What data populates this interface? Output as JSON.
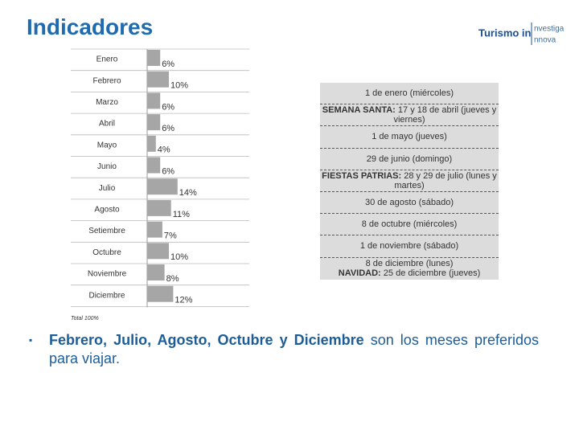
{
  "header": {
    "title": "Indicadores",
    "logo": {
      "brand": "Turismo in",
      "line1": "nvestiga",
      "line2": "nnova"
    }
  },
  "chart_data": {
    "type": "bar",
    "orientation": "horizontal",
    "categories": [
      "Enero",
      "Febrero",
      "Marzo",
      "Abril",
      "Mayo",
      "Junio",
      "Julio",
      "Agosto",
      "Setiembre",
      "Octubre",
      "Noviembre",
      "Diciembre"
    ],
    "values": [
      6,
      10,
      6,
      6,
      4,
      6,
      14,
      11,
      7,
      10,
      8,
      12
    ],
    "value_labels": [
      "6%",
      "10%",
      "6%",
      "6%",
      "4%",
      "6%",
      "14%",
      "11%",
      "7%",
      "10%",
      "8%",
      "12%"
    ],
    "color": "#a6a6a6",
    "annotation": "Total 100%"
  },
  "holidays": [
    [
      {
        "text": "1 de enero (miércoles)"
      }
    ],
    [
      {
        "lead": "SEMANA SANTA:",
        "text": "17 y 18 de abril (jueves y viernes)"
      }
    ],
    [
      {
        "text": "1 de mayo (jueves)"
      }
    ],
    [
      {
        "text": "29 de junio (domingo)"
      }
    ],
    [
      {
        "lead": "FIESTAS PATRIAS:",
        "text": "28 y 29 de julio (lunes y martes)"
      }
    ],
    [
      {
        "text": "30 de agosto (sábado)"
      }
    ],
    [
      {
        "text": "8 de octubre (miércoles)"
      }
    ],
    [
      {
        "text": "1 de noviembre (sábado)"
      }
    ],
    [
      {
        "text": "8 de diciembre (lunes)"
      },
      {
        "lead": "NAVIDAD:",
        "text": "25 de diciembre (jueves)"
      }
    ]
  ],
  "bullet": {
    "lead": "Febrero, Julio, Agosto, Octubre y Diciembre",
    "text": "son los meses preferidos para viajar."
  }
}
